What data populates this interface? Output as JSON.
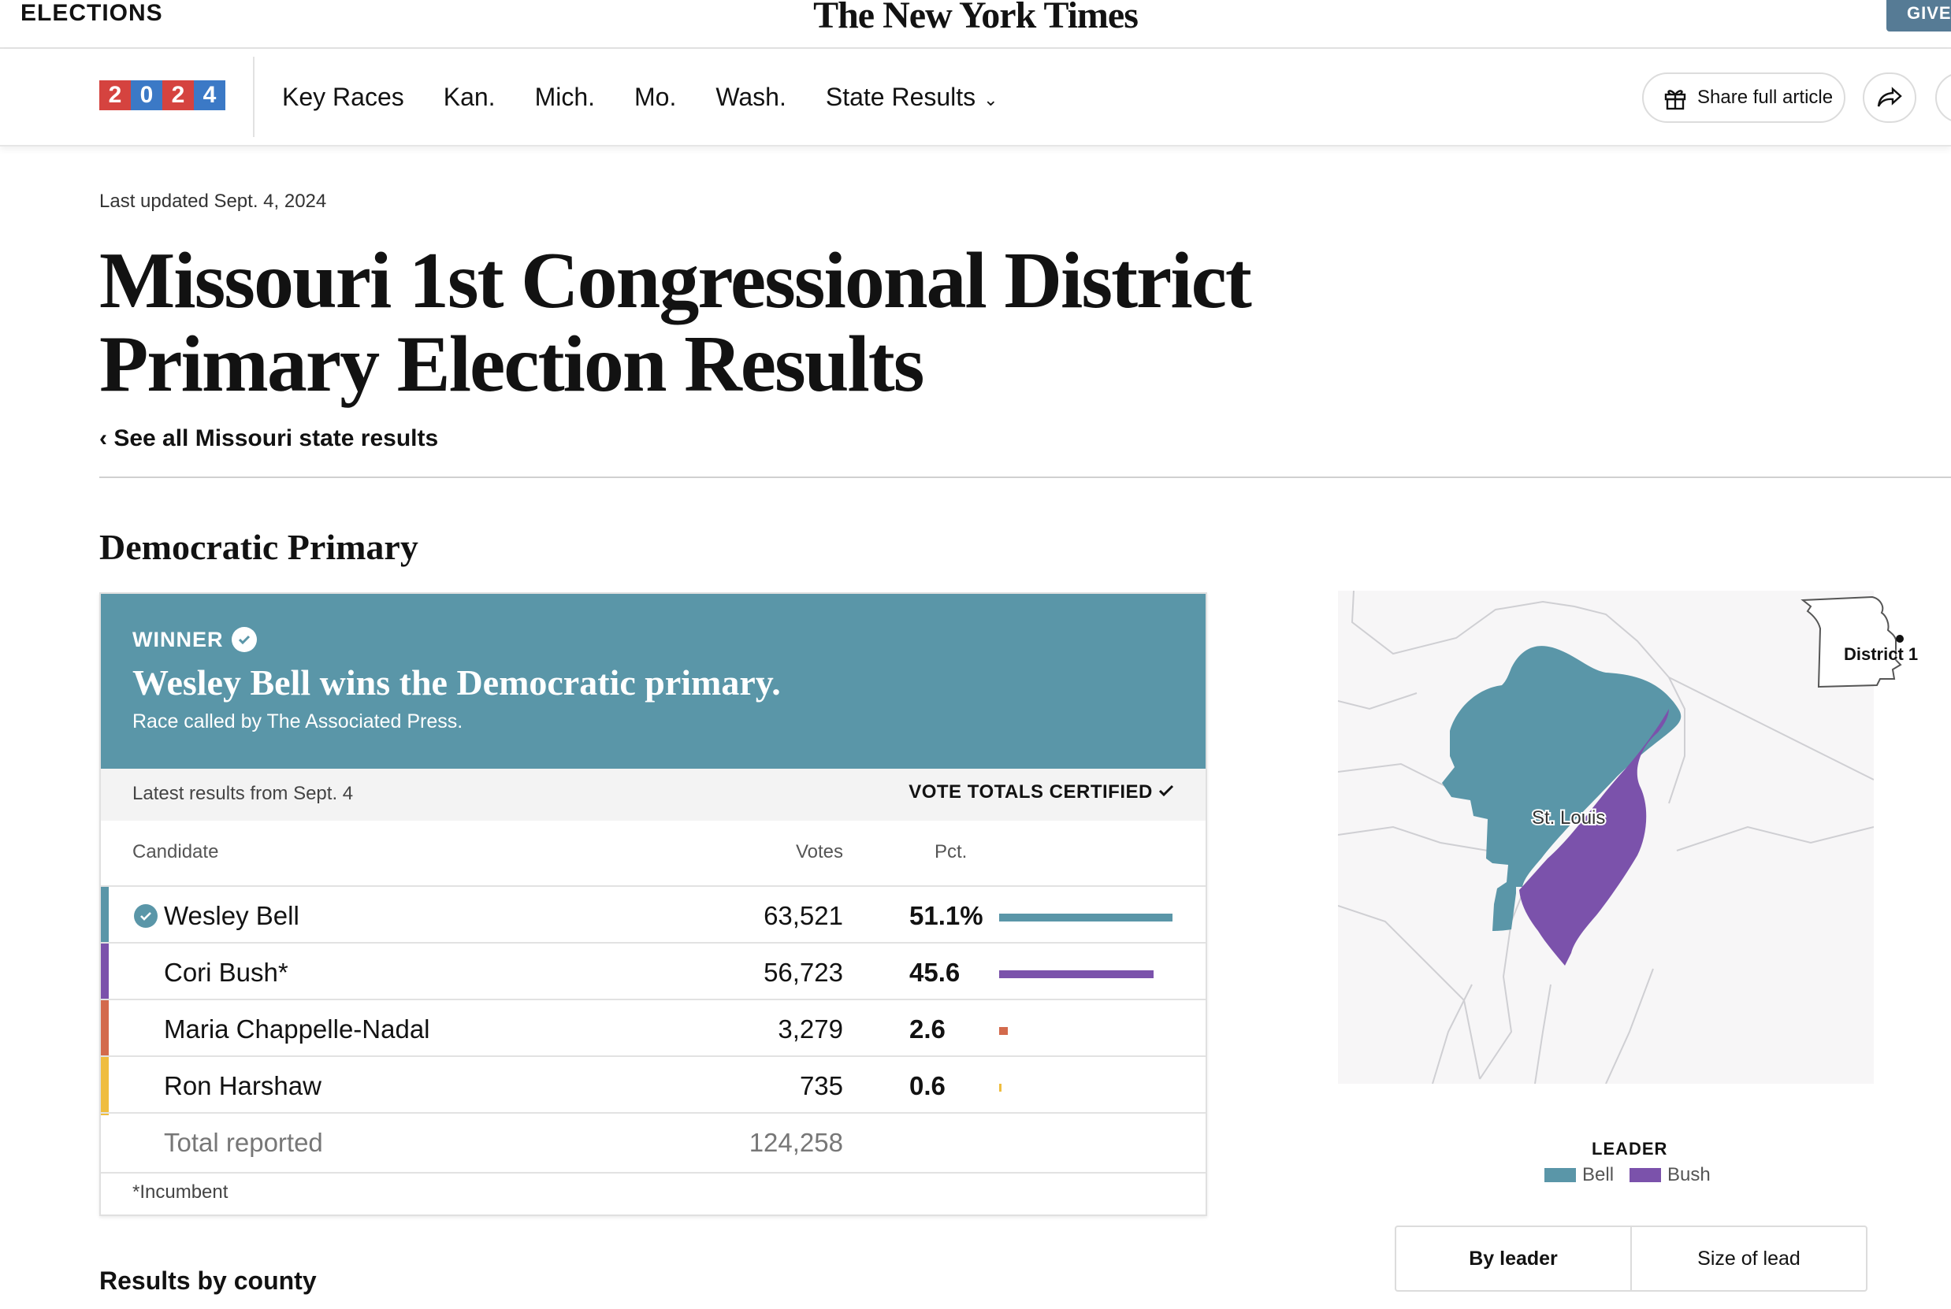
{
  "topbar": {
    "section": "ELECTIONS",
    "masthead": "The New York Times",
    "give_label": "GIVE"
  },
  "nav": {
    "logo_digits": [
      "2",
      "0",
      "2",
      "4"
    ],
    "logo_colors": [
      "#d5433f",
      "#3b79c6",
      "#d5433f",
      "#3b79c6"
    ],
    "links": [
      "Key Races",
      "Kan.",
      "Mich.",
      "Mo.",
      "Wash.",
      "State Results"
    ],
    "share_label": "Share full article"
  },
  "header": {
    "last_updated": "Last updated Sept. 4, 2024",
    "title_line1": "Missouri 1st Congressional District",
    "title_line2": "Primary Election Results",
    "back_link": "‹ See all Missouri state results"
  },
  "race": {
    "heading": "Democratic Primary",
    "winner_label": "WINNER",
    "winner_headline": "Wesley Bell wins the Democratic primary.",
    "race_called": "Race called by The Associated Press.",
    "latest_results": "Latest results from Sept. 4",
    "certified": "VOTE TOTALS CERTIFIED",
    "columns": {
      "candidate": "Candidate",
      "votes": "Votes",
      "pct": "Pct."
    },
    "candidates": [
      {
        "name": "Wesley Bell",
        "votes": "63,521",
        "pct": "51.1%",
        "pct_value": 51.1,
        "color": "#5a96a8",
        "winner": true
      },
      {
        "name": "Cori Bush*",
        "votes": "56,723",
        "pct": "45.6",
        "pct_value": 45.6,
        "color": "#7b52ab",
        "winner": false
      },
      {
        "name": "Maria Chappelle-Nadal",
        "votes": "3,279",
        "pct": "2.6",
        "pct_value": 2.6,
        "color": "#d36a4c",
        "winner": false
      },
      {
        "name": "Ron Harshaw",
        "votes": "735",
        "pct": "0.6",
        "pct_value": 0.6,
        "color": "#efbd3e",
        "winner": false
      }
    ],
    "total_label": "Total reported",
    "total_votes": "124,258",
    "footnote": "*Incumbent"
  },
  "map": {
    "locator_label": "District 1",
    "city_label": "St. Louis",
    "leader_title": "LEADER",
    "legend": [
      {
        "name": "Bell",
        "color": "#5a96a8"
      },
      {
        "name": "Bush",
        "color": "#7b52ab"
      }
    ],
    "toggle": [
      "By leader",
      "Size of lead"
    ]
  },
  "county": {
    "heading": "Results by county"
  }
}
